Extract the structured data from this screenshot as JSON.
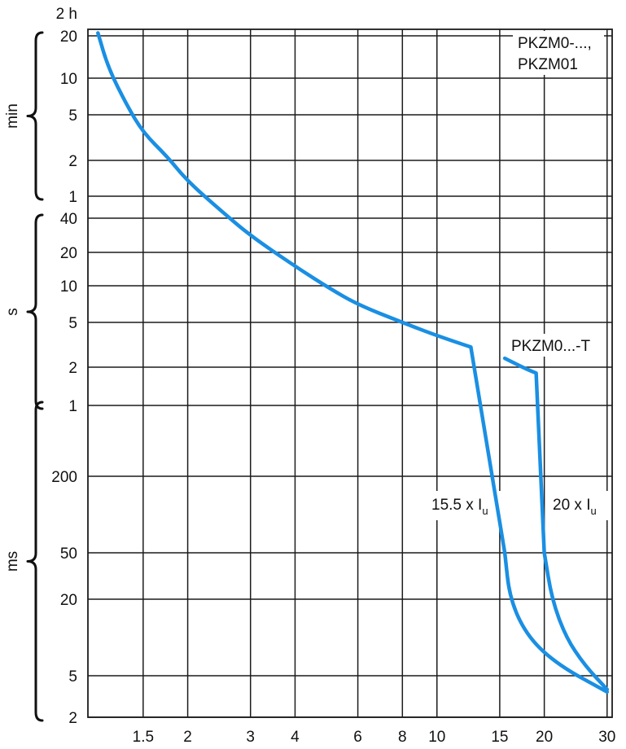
{
  "chart_data": {
    "type": "line",
    "x_scale": "log",
    "y_scale": "log",
    "x_ticks": [
      1.5,
      2,
      3,
      4,
      6,
      8,
      10,
      15,
      20,
      30
    ],
    "x_tick_labels": [
      "1.5",
      "2",
      "3",
      "4",
      "6",
      "8",
      "10",
      "15",
      "20",
      "30"
    ],
    "xlim": [
      1.05,
      31
    ],
    "ylim_seconds": [
      0.002,
      7200
    ],
    "y_ticks": [
      {
        "label": "2 h",
        "seconds": 7200
      },
      {
        "label": "20",
        "seconds": 1200
      },
      {
        "label": "10",
        "seconds": 600
      },
      {
        "label": "5",
        "seconds": 300
      },
      {
        "label": "2",
        "seconds": 120
      },
      {
        "label": "1",
        "seconds": 60
      },
      {
        "label": "40",
        "seconds": 40
      },
      {
        "label": "20",
        "seconds": 20
      },
      {
        "label": "10",
        "seconds": 10
      },
      {
        "label": "5",
        "seconds": 5
      },
      {
        "label": "2",
        "seconds": 2
      },
      {
        "label": "1",
        "seconds": 1
      },
      {
        "label": "200",
        "seconds": 0.2
      },
      {
        "label": "50",
        "seconds": 0.05
      },
      {
        "label": "20",
        "seconds": 0.02
      },
      {
        "label": "5",
        "seconds": 0.005
      },
      {
        "label": "2",
        "seconds": 0.002
      }
    ],
    "y_unit_groups": [
      {
        "label": "min",
        "from_seconds": 60,
        "to_seconds": 1200
      },
      {
        "label": "s",
        "from_seconds": 1,
        "to_seconds": 40
      },
      {
        "label": "ms",
        "from_seconds": 0.002,
        "to_seconds": 1
      }
    ],
    "series": [
      {
        "name": "PKZM0-..., PKZM01",
        "color": "#1a8fe3",
        "points": [
          [
            1.12,
            1500
          ],
          [
            1.2,
            700
          ],
          [
            1.35,
            360
          ],
          [
            1.5,
            210
          ],
          [
            1.75,
            130
          ],
          [
            2,
            80
          ],
          [
            2.5,
            45
          ],
          [
            3,
            28
          ],
          [
            4,
            15
          ],
          [
            5,
            9.5
          ],
          [
            6,
            7
          ],
          [
            8,
            5
          ],
          [
            10,
            3.8
          ],
          [
            15.5,
            2.4
          ],
          [
            15.5,
            0.05
          ],
          [
            16,
            0.02
          ],
          [
            18,
            0.01
          ],
          [
            22,
            0.006
          ],
          [
            30,
            0.0035
          ]
        ]
      },
      {
        "name": "PKZM0...-T",
        "color": "#1a8fe3",
        "points": [
          [
            15.5,
            2.4
          ],
          [
            18,
            1.9
          ],
          [
            20,
            1.7
          ],
          [
            20,
            0.05
          ],
          [
            21,
            0.02
          ],
          [
            23,
            0.01
          ],
          [
            26,
            0.006
          ],
          [
            30,
            0.0037
          ]
        ]
      }
    ],
    "annotations": {
      "series1_label_line1": "PKZM0-...,",
      "series1_label_line2": "PKZM01",
      "series2_label": "PKZM0...-T",
      "thr1_main": "15.5 x I",
      "thr1_sub": "u",
      "thr2_main": "20 x I",
      "thr2_sub": "u"
    },
    "grid": true
  }
}
